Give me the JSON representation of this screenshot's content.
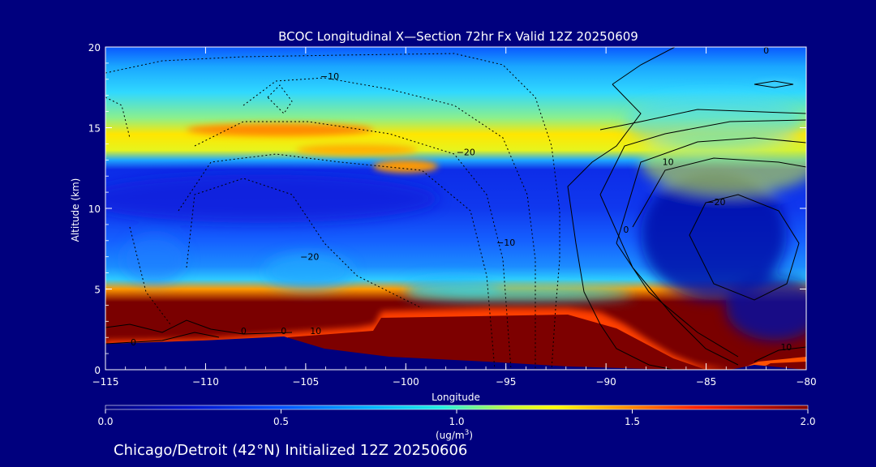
{
  "chart_data": {
    "type": "heatmap",
    "title": "BCOC Longitudinal X—Section 72hr  Fx Valid 12Z 20250609",
    "subtitle": "Chicago/Detroit (42°N) Initialized 12Z 20250606",
    "xlabel": "Longitude",
    "ylabel": "Altitude (km)",
    "xlim": [
      -115,
      -80
    ],
    "ylim": [
      0,
      20
    ],
    "x_ticks": [
      -115,
      -110,
      -105,
      -100,
      -95,
      -90,
      -85,
      -80
    ],
    "x_tick_labels": [
      "−115",
      "−110",
      "−105",
      "−100",
      "−95",
      "−90",
      "−85",
      "−80"
    ],
    "y_ticks": [
      0,
      5,
      10,
      15,
      20
    ],
    "y_tick_labels": [
      "0",
      "5",
      "10",
      "15",
      "20"
    ],
    "colorbar": {
      "min": 0.0,
      "max": 2.0,
      "ticks": [
        0.0,
        0.5,
        1.0,
        1.5,
        2.0
      ],
      "tick_labels": [
        "0.0",
        "0.5",
        "1.0",
        "1.5",
        "2.0"
      ],
      "unit_label": "(ug/m",
      "unit_exponent": "3",
      "unit_close": ")"
    },
    "contour_labels": [
      {
        "text": "0",
        "x": -82.0,
        "y": 19.6
      },
      {
        "text": "−10",
        "x": -103.8,
        "y": 18.0
      },
      {
        "text": "−20",
        "x": -97.0,
        "y": 13.3
      },
      {
        "text": "10",
        "x": -86.9,
        "y": 12.7
      },
      {
        "text": "−20",
        "x": -84.5,
        "y": 10.2
      },
      {
        "text": "0",
        "x": -89.0,
        "y": 8.5
      },
      {
        "text": "−10",
        "x": -95.0,
        "y": 7.7
      },
      {
        "text": "−20",
        "x": -104.8,
        "y": 6.8
      },
      {
        "text": "0",
        "x": -108.1,
        "y": 2.2
      },
      {
        "text": "0",
        "x": -113.6,
        "y": 1.5
      },
      {
        "text": "0",
        "x": -106.1,
        "y": 2.2
      },
      {
        "text": "10",
        "x": -104.5,
        "y": 2.2
      },
      {
        "text": "10",
        "x": -81.0,
        "y": 1.2
      }
    ]
  }
}
